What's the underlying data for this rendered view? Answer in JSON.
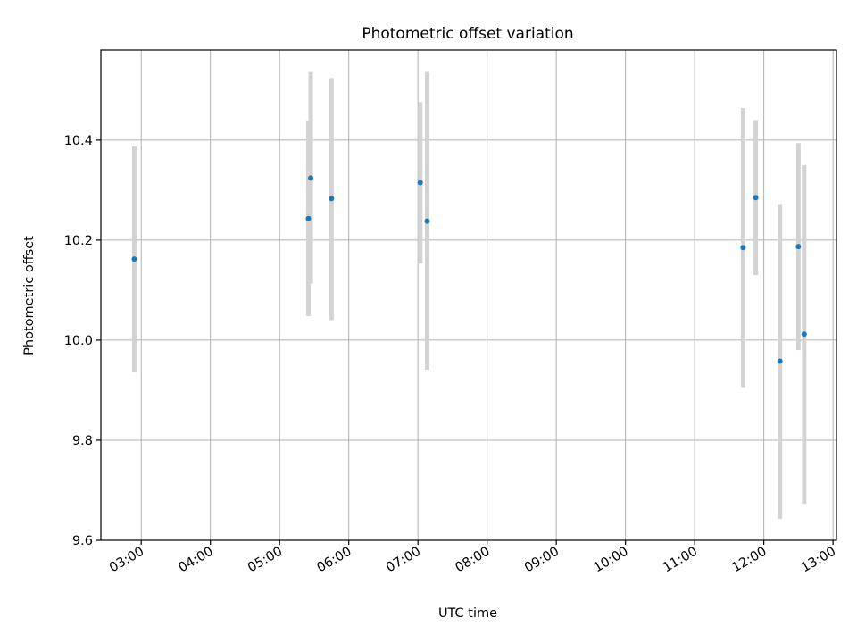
{
  "chart_data": {
    "type": "scatter",
    "title": "Photometric offset variation",
    "xlabel": "UTC time",
    "ylabel": "Photometric offset",
    "ylim": [
      9.6,
      10.58
    ],
    "xlim": [
      "02:25",
      "13:03"
    ],
    "grid": true,
    "legend": "none",
    "x_ticks": [
      "03:00",
      "04:00",
      "05:00",
      "06:00",
      "07:00",
      "08:00",
      "09:00",
      "10:00",
      "11:00",
      "12:00",
      "13:00"
    ],
    "y_ticks": [
      "9.6",
      "9.8",
      "10.0",
      "10.2",
      "10.4"
    ],
    "y_tick_values": [
      9.6,
      9.8,
      10.0,
      10.2,
      10.4
    ],
    "point_color": "#1f77b4",
    "errorbar_color": "#d3d3d3",
    "points": [
      {
        "x": "02:54",
        "y": 10.162,
        "ylow": 9.937,
        "yhigh": 10.387
      },
      {
        "x": "05:25",
        "y": 10.243,
        "ylow": 10.048,
        "yhigh": 10.438
      },
      {
        "x": "05:27",
        "y": 10.324,
        "ylow": 10.113,
        "yhigh": 10.536
      },
      {
        "x": "05:45",
        "y": 10.283,
        "ylow": 10.04,
        "yhigh": 10.524
      },
      {
        "x": "07:02",
        "y": 10.315,
        "ylow": 10.153,
        "yhigh": 10.476
      },
      {
        "x": "07:08",
        "y": 10.238,
        "ylow": 9.941,
        "yhigh": 10.536
      },
      {
        "x": "11:42",
        "y": 10.185,
        "ylow": 9.906,
        "yhigh": 10.464
      },
      {
        "x": "11:53",
        "y": 10.285,
        "ylow": 10.13,
        "yhigh": 10.44
      },
      {
        "x": "12:14",
        "y": 9.958,
        "ylow": 9.643,
        "yhigh": 10.272
      },
      {
        "x": "12:30",
        "y": 10.187,
        "ylow": 9.98,
        "yhigh": 10.394
      },
      {
        "x": "12:35",
        "y": 10.012,
        "ylow": 9.673,
        "yhigh": 10.35
      }
    ]
  }
}
